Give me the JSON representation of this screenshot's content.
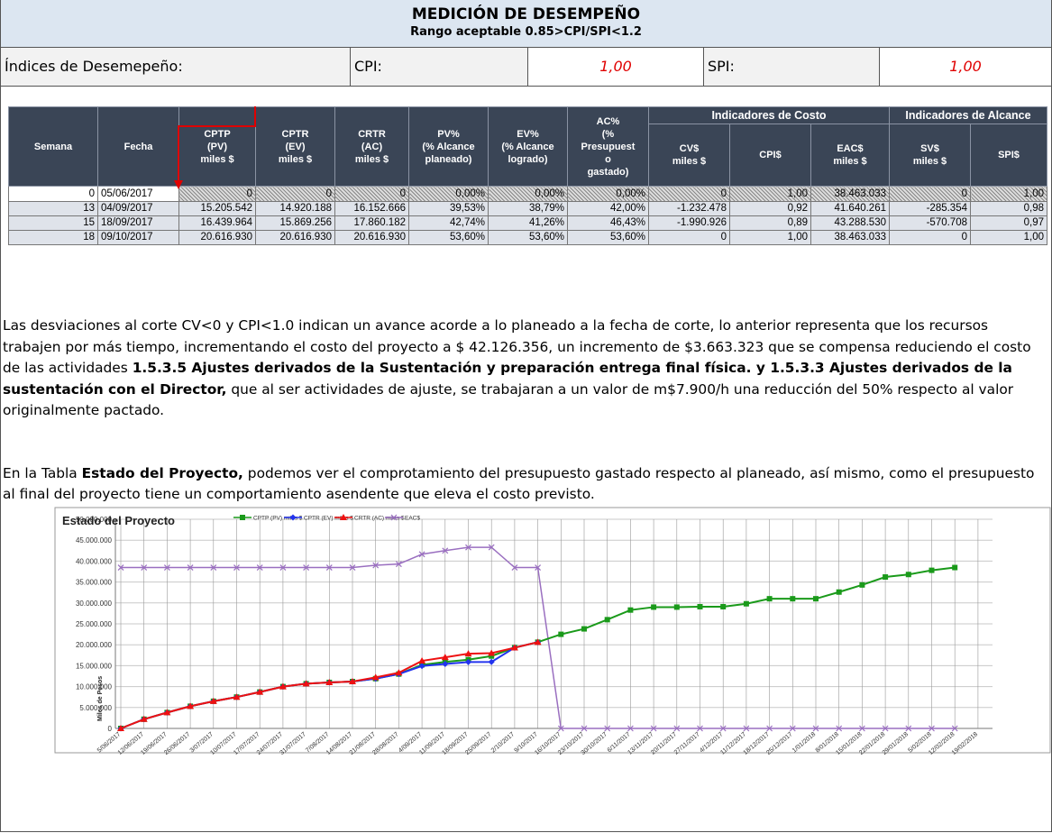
{
  "header": {
    "title": "MEDICIÓN DE DESEMPEÑO",
    "subtitle": "Rango aceptable 0.85>CPI/SPI<1.2"
  },
  "indices": {
    "label": "Índices de Desemepeño:",
    "cpi_label": "CPI:",
    "cpi": "1,00",
    "spi_label": "SPI:",
    "spi": "1,00"
  },
  "table": {
    "groups": [
      "Indicadores de Costo",
      "Indicadores de Alcance"
    ],
    "columns": [
      [
        "Semana"
      ],
      [
        "Fecha"
      ],
      [
        "CPTP",
        "(PV)",
        "miles $"
      ],
      [
        "CPTR",
        "(EV)",
        "miles $"
      ],
      [
        "CRTR",
        "(AC)",
        "miles $"
      ],
      [
        "PV%",
        "(% Alcance",
        "planeado)"
      ],
      [
        "EV%",
        "(% Alcance",
        "logrado)"
      ],
      [
        "AC%",
        "(%",
        "Presupuest",
        "o",
        "gastado)"
      ],
      [
        "CV$",
        "miles $"
      ],
      [
        "CPI$"
      ],
      [
        "EAC$",
        "miles $"
      ],
      [
        "SV$",
        "miles $"
      ],
      [
        "SPI$"
      ]
    ],
    "rows": [
      [
        "0",
        "05/06/2017",
        "0",
        "0",
        "0",
        "0,00%",
        "0,00%",
        "0,00%",
        "0",
        "1,00",
        "38.463.033",
        "0",
        "1,00"
      ],
      [
        "13",
        "04/09/2017",
        "15.205.542",
        "14.920.188",
        "16.152.666",
        "39,53%",
        "38,79%",
        "42,00%",
        "-1.232.478",
        "0,92",
        "41.640.261",
        "-285.354",
        "0,98"
      ],
      [
        "15",
        "18/09/2017",
        "16.439.964",
        "15.869.256",
        "17.860.182",
        "42,74%",
        "41,26%",
        "46,43%",
        "-1.990.926",
        "0,89",
        "43.288.530",
        "-570.708",
        "0,97"
      ],
      [
        "18",
        "09/10/2017",
        "20.616.930",
        "20.616.930",
        "20.616.930",
        "53,60%",
        "53,60%",
        "53,60%",
        "0",
        "1,00",
        "38.463.033",
        "0",
        "1,00"
      ]
    ]
  },
  "paragraphs": [
    [
      {
        "text": "Las desviaciones al corte CV<0 y CPI<1.0 indican un avance acorde a lo planeado a la fecha de corte, lo anterior representa que los recursos trabajen por más tiempo, incrementando el costo del proyecto a $ 42.126.356, un incremento de $3.663.323 que se compensa reduciendo el costo de las actividades ",
        "bold": false
      },
      {
        "text": "1.5.3.5 Ajustes derivados de la Sustentación y preparación entrega final física. y 1.5.3.3 Ajustes derivados de la sustentación con el Director,",
        "bold": true
      },
      {
        "text": " que al ser actividades de ajuste, se trabajaran a un valor de m$7.900/h una reducción del 50% respecto al valor originalmente pactado.",
        "bold": false
      }
    ],
    [
      {
        "text": "En la Tabla ",
        "bold": false
      },
      {
        "text": "Estado del Proyecto,",
        "bold": true
      },
      {
        "text": " podemos ver el comprotamiento del presupuesto gastado respecto al planeado, así mismo, como el presupuesto al final del proyecto tiene un comportamiento asendente que eleva el costo previsto.",
        "bold": false
      }
    ]
  ],
  "chart_data": {
    "type": "line",
    "title": "Estado del Proyecto",
    "y_label": "Miles de Pesos",
    "categories": [
      "5/06/2017",
      "12/06/2017",
      "19/06/2017",
      "26/06/2017",
      "3/07/2017",
      "10/07/2017",
      "17/07/2017",
      "24/07/2017",
      "31/07/2017",
      "7/08/2017",
      "14/08/2017",
      "21/08/2017",
      "28/08/2017",
      "4/09/2017",
      "11/09/2017",
      "18/09/2017",
      "25/09/2017",
      "2/10/2017",
      "9/10/2017",
      "16/10/2017",
      "23/10/2017",
      "30/10/2017",
      "6/11/2017",
      "13/11/2017",
      "20/11/2017",
      "27/11/2017",
      "4/12/2017",
      "11/12/2017",
      "18/12/2017",
      "25/12/2017",
      "1/01/2018",
      "8/01/2018",
      "15/01/2018",
      "22/01/2018",
      "29/01/2018",
      "5/02/2018",
      "12/02/2018",
      "19/02/2018"
    ],
    "series": [
      {
        "name": "CPTP (PV) miles $",
        "color": "#1a9a1a",
        "marker": "square",
        "values": [
          0,
          2200000,
          3800000,
          5300000,
          6500000,
          7500000,
          8700000,
          10000000,
          10700000,
          11000000,
          11200000,
          11900000,
          13000000,
          15205542,
          15900000,
          16439964,
          17300000,
          19300000,
          20616930,
          22500000,
          23800000,
          26000000,
          28300000,
          29000000,
          29000000,
          29100000,
          29100000,
          29800000,
          31000000,
          31000000,
          31000000,
          32600000,
          34300000,
          36200000,
          36800000,
          37800000,
          38463033,
          null
        ]
      },
      {
        "name": "CPTR (EV) miles $",
        "color": "#2233ee",
        "marker": "diamond",
        "values": [
          0,
          2200000,
          3800000,
          5300000,
          6500000,
          7500000,
          8700000,
          10000000,
          10700000,
          11000000,
          11200000,
          11900000,
          13000000,
          14920188,
          15400000,
          15869256,
          15900000,
          19300000,
          20616930,
          null,
          null,
          null,
          null,
          null,
          null,
          null,
          null,
          null,
          null,
          null,
          null,
          null,
          null,
          null,
          null,
          null,
          null,
          null
        ]
      },
      {
        "name": "CRTR (AC) miles $",
        "color": "#ee1111",
        "marker": "triangle",
        "values": [
          0,
          2200000,
          3800000,
          5300000,
          6500000,
          7500000,
          8700000,
          10000000,
          10700000,
          11000000,
          11200000,
          12200000,
          13300000,
          16152666,
          17000000,
          17860182,
          18000000,
          19300000,
          20616930,
          null,
          null,
          null,
          null,
          null,
          null,
          null,
          null,
          null,
          null,
          null,
          null,
          null,
          null,
          null,
          null,
          null,
          null,
          null
        ]
      },
      {
        "name": "EAC$",
        "color": "#9a6fc0",
        "marker": "x",
        "values": [
          38463033,
          38463033,
          38463033,
          38463033,
          38463033,
          38463033,
          38463033,
          38463033,
          38463033,
          38463033,
          38463033,
          39000000,
          39300000,
          41640261,
          42500000,
          43288530,
          43300000,
          38463033,
          38463033,
          0,
          0,
          0,
          0,
          0,
          0,
          0,
          0,
          0,
          0,
          0,
          0,
          0,
          0,
          0,
          0,
          0,
          0,
          null
        ]
      }
    ],
    "ylim": [
      0,
      50000000
    ],
    "yticks": [
      0,
      {
        "value": 5000000,
        "label": "5.000.000"
      },
      {
        "value": 10000000,
        "label": "10.000.000"
      },
      {
        "value": 15000000,
        "label": "15.000.000"
      },
      {
        "value": 20000000,
        "label": "20.000.000"
      },
      {
        "value": 25000000,
        "label": "25.000.000"
      },
      {
        "value": 30000000,
        "label": "30.000.000"
      },
      {
        "value": 35000000,
        "label": "35.000.000"
      },
      {
        "value": 40000000,
        "label": "40.000.000"
      },
      {
        "value": 45000000,
        "label": "45.000.000"
      },
      {
        "value": 50000000,
        "label": "50.000.000"
      }
    ],
    "grid": true,
    "legend": "top"
  }
}
